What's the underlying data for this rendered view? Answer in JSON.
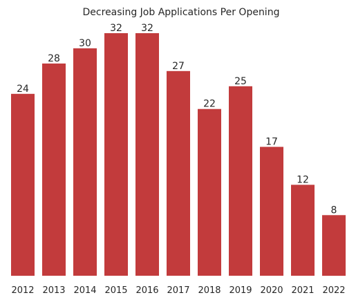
{
  "chart_data": {
    "type": "bar",
    "title": "Decreasing Job Applications Per Opening",
    "xlabel": "",
    "ylabel": "",
    "categories": [
      "2012",
      "2013",
      "2014",
      "2015",
      "2016",
      "2017",
      "2018",
      "2019",
      "2020",
      "2021",
      "2022"
    ],
    "values": [
      24,
      28,
      30,
      32,
      32,
      27,
      22,
      25,
      17,
      12,
      8
    ],
    "ylim": [
      0,
      32
    ],
    "grid": false,
    "data_labels": true,
    "bar_color": "#c23b3c"
  }
}
